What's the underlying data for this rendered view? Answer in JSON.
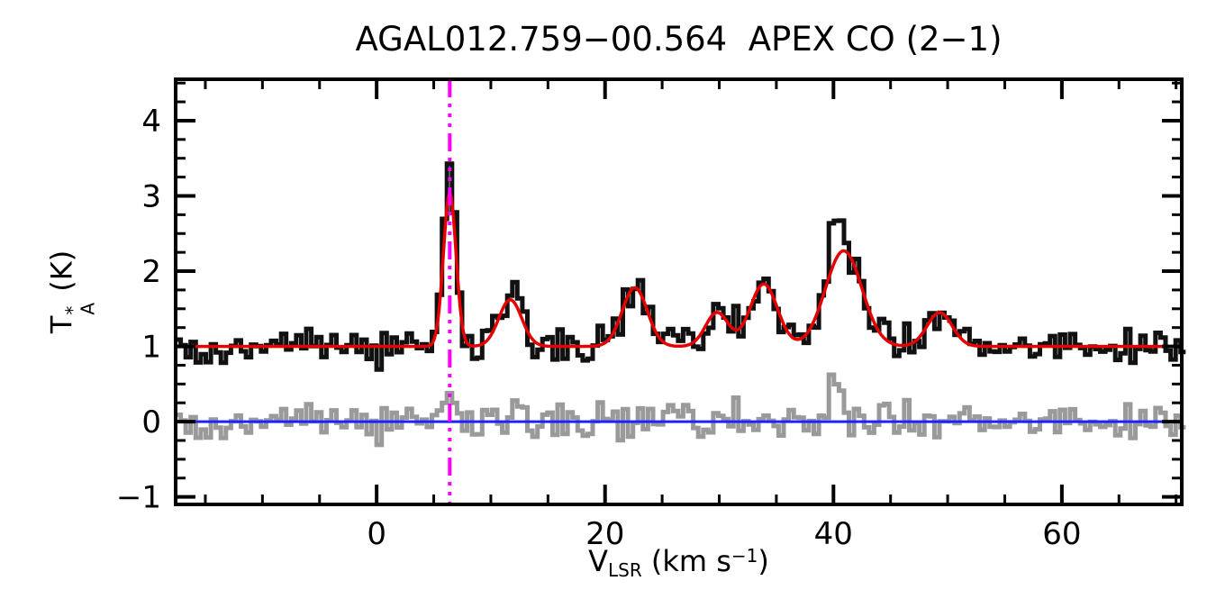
{
  "chart_data": {
    "type": "line",
    "title": "AGAL012.759−00.564  APEX CO (2−1)",
    "xlabel_plain": "V_LSR (km s^-1)",
    "ylabel_plain": "T_A^* (K)",
    "axis_labels": {
      "y": {
        "base": "T",
        "sup": "*",
        "sub": "A",
        "unit": " (K)"
      },
      "x": {
        "base": "V",
        "sub": "LSR",
        "mid": " (km s",
        "sup": "−1",
        "end": ")"
      }
    },
    "xlim": [
      -17.6,
      70.5
    ],
    "ylim": [
      -1.1,
      4.55
    ],
    "x_major_ticks": [
      0,
      20,
      40,
      60
    ],
    "x_tick_labels": [
      "0",
      "20",
      "40",
      "60"
    ],
    "x_minor_step": 5,
    "y_major_ticks": [
      -1,
      0,
      1,
      2,
      3,
      4
    ],
    "y_tick_labels": [
      "−1",
      "0",
      "1",
      "2",
      "3",
      "4"
    ],
    "y_minor_step": 0.25,
    "grid": false,
    "legend": "none",
    "baseline_level": 1.0,
    "zero_level": 0.0,
    "channel_width_kms": 0.44,
    "noise_rms_K": 0.12,
    "gauss_components": [
      {
        "center": 6.4,
        "amp": 2.05,
        "sigma": 0.55
      },
      {
        "center": 11.7,
        "amp": 0.62,
        "sigma": 1.0
      },
      {
        "center": 22.6,
        "amp": 0.78,
        "sigma": 1.1
      },
      {
        "center": 29.8,
        "amp": 0.45,
        "sigma": 1.0
      },
      {
        "center": 33.9,
        "amp": 0.83,
        "sigma": 1.2
      },
      {
        "center": 40.9,
        "amp": 1.27,
        "sigma": 1.6
      },
      {
        "center": 49.3,
        "amp": 0.45,
        "sigma": 1.1
      }
    ],
    "residual_features": [
      {
        "center": 6.3,
        "amp": 0.45,
        "sigma": 0.45
      },
      {
        "center": 40.4,
        "amp": 0.5,
        "sigma": 0.75
      }
    ],
    "vline": {
      "x": 6.4,
      "style": "dash-dot",
      "color": "#ff00ff"
    },
    "series_roles": [
      {
        "name": "observed CO (2-1) spectrum",
        "render": "histogram",
        "color": "#111111"
      },
      {
        "name": "multi-gaussian fit",
        "render": "smooth",
        "color": "#e60000"
      },
      {
        "name": "fit residual",
        "render": "histogram",
        "color": "#9a9a9a"
      },
      {
        "name": "zero level",
        "render": "hline",
        "color": "#2020ff"
      },
      {
        "name": "systemic velocity marker",
        "render": "vline",
        "color": "#ff00ff"
      }
    ],
    "colors": {
      "spectrum": "#111111",
      "fit": "#e60000",
      "residual": "#9a9a9a",
      "zero_line": "#2020ff",
      "vline": "#ff00ff",
      "frame": "#000000"
    }
  }
}
